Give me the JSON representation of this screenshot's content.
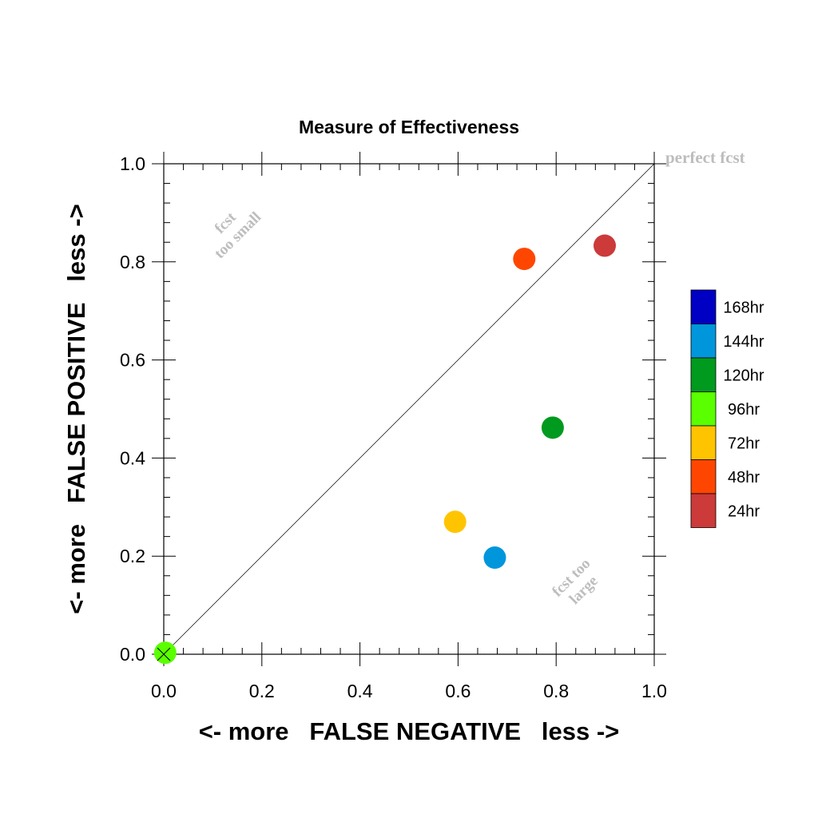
{
  "chart_data": {
    "type": "scatter",
    "title": "Measure of Effectiveness",
    "xlabel": "<- more   FALSE NEGATIVE   less ->",
    "ylabel": "<- more   FALSE POSITIVE   less ->",
    "xlim": [
      0.0,
      1.0
    ],
    "ylim": [
      0.0,
      1.0
    ],
    "x_ticks": [
      "0.0",
      "0.2",
      "0.4",
      "0.6",
      "0.8",
      "1.0"
    ],
    "y_ticks": [
      "0.0",
      "0.2",
      "0.4",
      "0.6",
      "0.8",
      "1.0"
    ],
    "grid": false,
    "reference_line": {
      "from": [
        0.0,
        0.0
      ],
      "to": [
        1.0,
        1.0
      ]
    },
    "annotations": {
      "perfect": "perfect fcst",
      "small_line1": "fcst",
      "small_line2": "too small",
      "large_line1": "fcst too",
      "large_line2": "large"
    },
    "legend_position": "right",
    "series": [
      {
        "name": "168hr",
        "color": "#0000c4",
        "points": []
      },
      {
        "name": "144hr",
        "color": "#0096dc",
        "points": [
          [
            0.675,
            0.197
          ]
        ]
      },
      {
        "name": "120hr",
        "color": "#009a1e",
        "points": [
          [
            0.793,
            0.462
          ]
        ]
      },
      {
        "name": "96hr",
        "color": "#5aff00",
        "points": [
          [
            0.003,
            0.003
          ]
        ]
      },
      {
        "name": "72hr",
        "color": "#ffc400",
        "points": [
          [
            0.594,
            0.27
          ]
        ]
      },
      {
        "name": "48hr",
        "color": "#ff4600",
        "points": [
          [
            0.735,
            0.806
          ]
        ]
      },
      {
        "name": "24hr",
        "color": "#cc3a3a",
        "points": [
          [
            0.899,
            0.833
          ]
        ]
      }
    ]
  }
}
